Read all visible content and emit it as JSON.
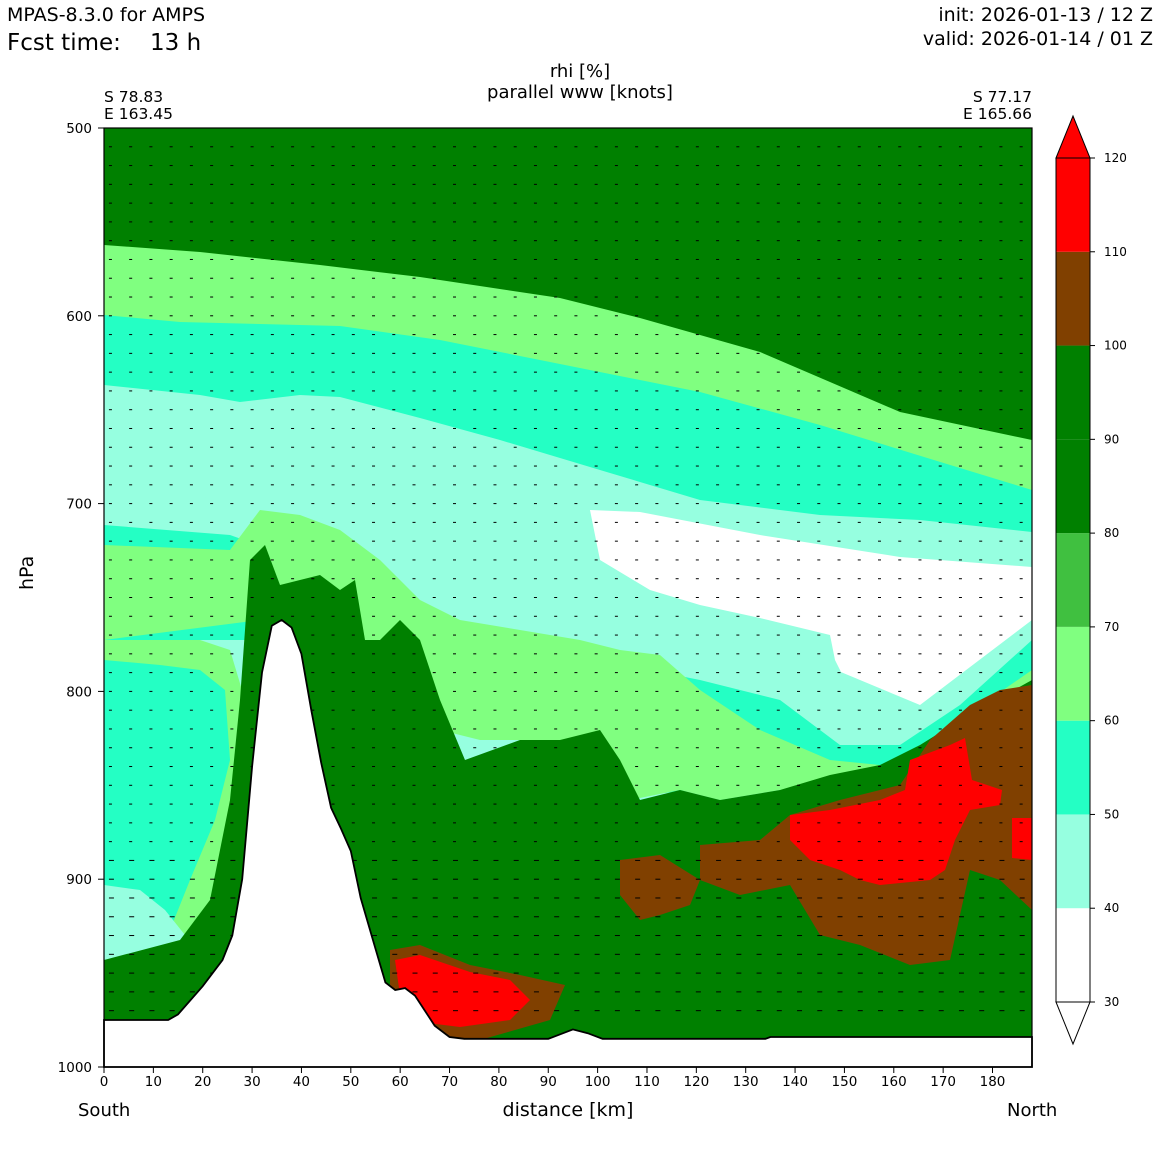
{
  "header": {
    "model": "MPAS-8.3.0 for AMPS",
    "fcst_label": "Fcst time:",
    "fcst_value": "13 h",
    "init": "init: 2026-01-13 / 12 Z",
    "valid": "valid: 2026-01-14 / 01 Z"
  },
  "titles": {
    "line1": "rhi [%]",
    "line2": "parallel www [knots]"
  },
  "endpoints": {
    "left_lat": "S 78.83",
    "left_lon": "E 163.45",
    "right_lat": "S 77.17",
    "right_lon": "E 165.66"
  },
  "directions": {
    "left": "South",
    "right": "North"
  },
  "chart_data": {
    "type": "heatmap",
    "xlabel": "distance [km]",
    "ylabel": "hPa",
    "xlim": [
      0,
      188
    ],
    "ylim": [
      1000,
      500
    ],
    "x_ticks": [
      0,
      10,
      20,
      30,
      40,
      50,
      60,
      70,
      80,
      90,
      100,
      110,
      120,
      130,
      140,
      150,
      160,
      170,
      180
    ],
    "y_ticks": [
      500,
      600,
      700,
      800,
      900,
      1000
    ],
    "colorbar": {
      "levels": [
        30,
        40,
        50,
        60,
        70,
        80,
        90,
        100,
        110,
        120
      ],
      "tick_labels": [
        "30",
        "40",
        "50",
        "60",
        "70",
        "80",
        "90",
        "100",
        "110",
        "120"
      ],
      "colors": [
        "#ffffff",
        "#96ffe0",
        "#24ffc4",
        "#80ff80",
        "#40c040",
        "#008000",
        "#008000",
        "#804000",
        "#ff0000"
      ],
      "extend": "both"
    },
    "field_colors": {
      "lt40": "#ffffff",
      "40_50": "#96ffe0",
      "50_60": "#24ffc4",
      "60_70": "#80ff80",
      "80_100": "#008000",
      "100_110": "#804000",
      "gt110": "#ff0000",
      "terrain": "#ffffff"
    },
    "terrain_profile_hpa": [
      [
        0,
        975
      ],
      [
        13,
        975
      ],
      [
        15,
        972
      ],
      [
        20,
        957
      ],
      [
        24,
        943
      ],
      [
        26,
        930
      ],
      [
        28,
        900
      ],
      [
        30,
        840
      ],
      [
        32,
        790
      ],
      [
        34,
        765
      ],
      [
        36,
        762
      ],
      [
        38,
        766
      ],
      [
        40,
        780
      ],
      [
        42,
        810
      ],
      [
        44,
        838
      ],
      [
        46,
        862
      ],
      [
        48,
        873
      ],
      [
        50,
        885
      ],
      [
        52,
        910
      ],
      [
        55,
        937
      ],
      [
        57,
        955
      ],
      [
        59,
        959
      ],
      [
        61,
        958
      ],
      [
        63,
        962
      ],
      [
        65,
        970
      ],
      [
        67,
        978
      ],
      [
        70,
        984
      ],
      [
        73,
        985
      ],
      [
        90,
        985
      ],
      [
        93,
        982
      ],
      [
        95,
        980
      ],
      [
        98,
        982
      ],
      [
        101,
        985
      ],
      [
        134,
        985
      ],
      [
        135,
        984
      ],
      [
        188,
        984
      ]
    ]
  }
}
